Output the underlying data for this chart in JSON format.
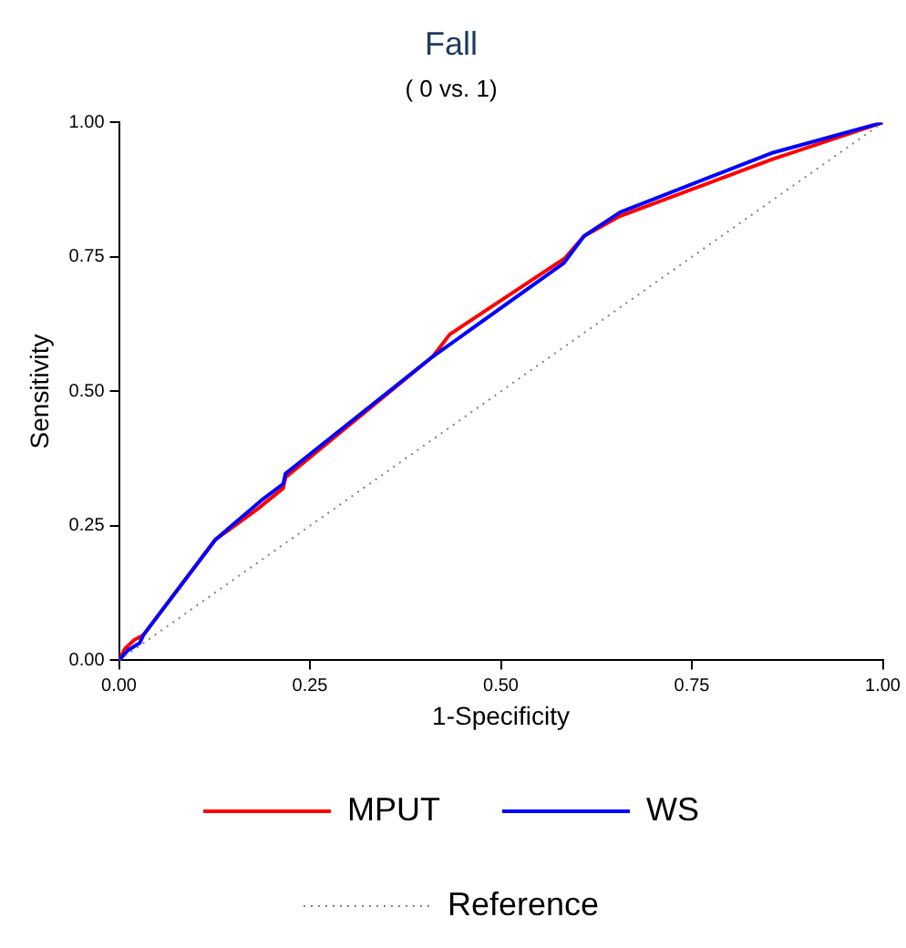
{
  "chart_data": {
    "type": "line",
    "title": "Fall",
    "subtitle": "( 0 vs. 1)",
    "xlabel": "1-Specificity",
    "ylabel": "Sensitivity",
    "xlim": [
      0,
      1
    ],
    "ylim": [
      0,
      1
    ],
    "xticks": [
      {
        "value": 0,
        "label": "0.00"
      },
      {
        "value": 0.25,
        "label": "0.25"
      },
      {
        "value": 0.5,
        "label": "0.50"
      },
      {
        "value": 0.75,
        "label": "0.75"
      },
      {
        "value": 1,
        "label": "1.00"
      }
    ],
    "yticks": [
      {
        "value": 0,
        "label": "0.00"
      },
      {
        "value": 0.25,
        "label": "0.25"
      },
      {
        "value": 0.5,
        "label": "0.50"
      },
      {
        "value": 0.75,
        "label": "0.75"
      },
      {
        "value": 1,
        "label": "1.00"
      }
    ],
    "grid": false,
    "legend": "bottom",
    "marker": "none",
    "series": [
      {
        "name": "MPUT",
        "color": "#ff0000",
        "line_style": "solid",
        "x": [
          0,
          0.008,
          0.02,
          0.032,
          0.126,
          0.181,
          0.215,
          0.218,
          0.411,
          0.433,
          0.584,
          0.609,
          0.656,
          0.854,
          1
        ],
        "values": [
          0,
          0.022,
          0.038,
          0.047,
          0.224,
          0.281,
          0.32,
          0.34,
          0.565,
          0.606,
          0.748,
          0.789,
          0.826,
          0.931,
          1
        ]
      },
      {
        "name": "WS",
        "color": "#0000ff",
        "line_style": "solid",
        "x": [
          0,
          0.012,
          0.027,
          0.032,
          0.126,
          0.186,
          0.215,
          0.218,
          0.411,
          0.582,
          0.609,
          0.656,
          0.854,
          1
        ],
        "values": [
          0,
          0.019,
          0.032,
          0.047,
          0.224,
          0.297,
          0.328,
          0.347,
          0.565,
          0.738,
          0.789,
          0.833,
          0.943,
          1
        ]
      },
      {
        "name": "Reference",
        "color": "#808080",
        "line_style": "dotted",
        "x": [
          0,
          1
        ],
        "values": [
          0,
          1
        ]
      }
    ]
  }
}
